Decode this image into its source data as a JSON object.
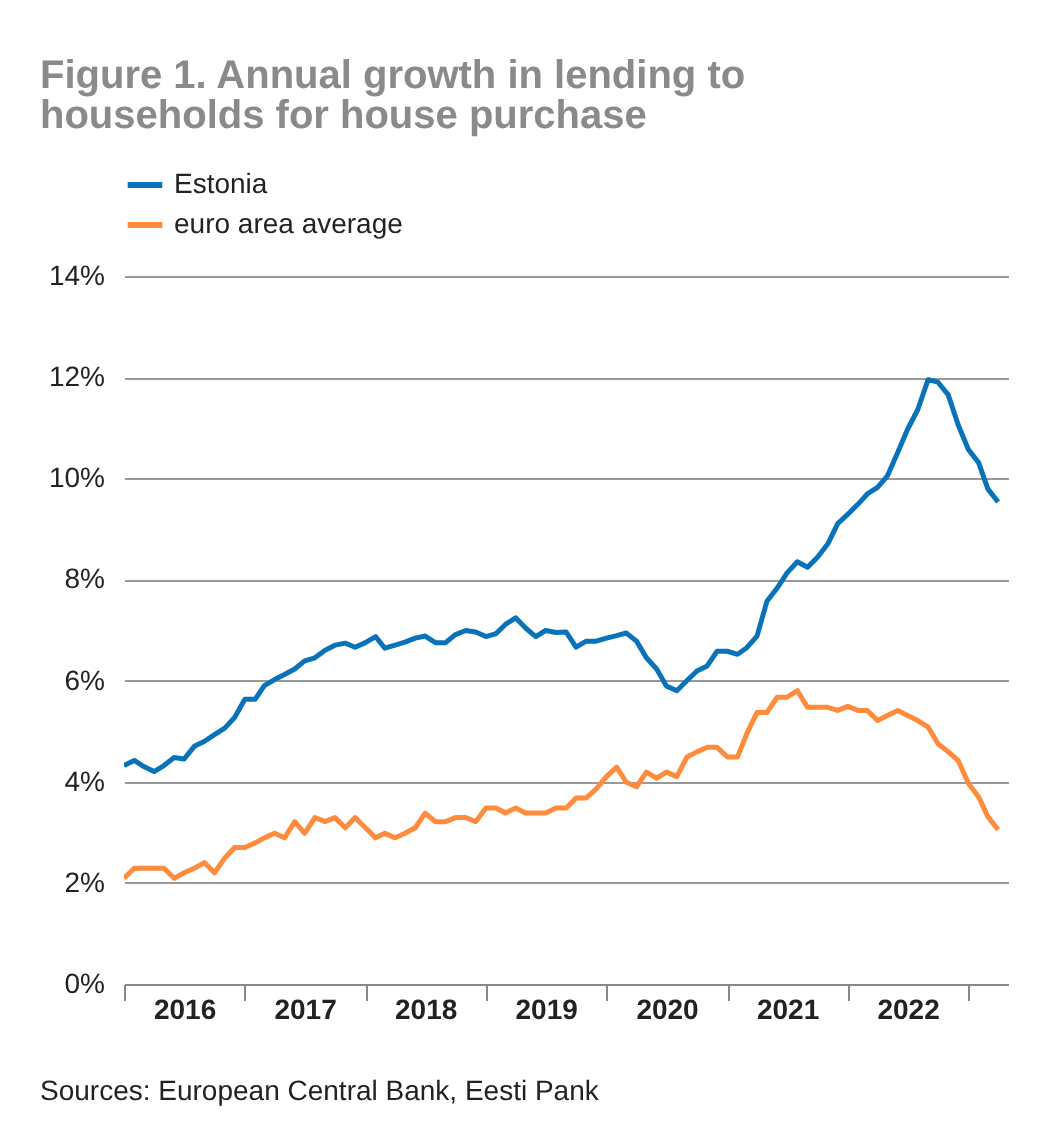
{
  "chart_data": {
    "type": "line",
    "title": "Figure 1. Annual growth in lending to households for house purchase",
    "annotations": [
      "Sources: European Central Bank, Eesti Pank"
    ],
    "x": [
      "2016-01",
      "2016-02",
      "2016-03",
      "2016-04",
      "2016-05",
      "2016-06",
      "2016-07",
      "2016-08",
      "2016-09",
      "2016-10",
      "2016-11",
      "2016-12",
      "2017-01",
      "2017-02",
      "2017-03",
      "2017-04",
      "2017-05",
      "2017-06",
      "2017-07",
      "2017-08",
      "2017-09",
      "2017-10",
      "2017-11",
      "2017-12",
      "2018-01",
      "2018-02",
      "2018-03",
      "2018-04",
      "2018-05",
      "2018-06",
      "2018-07",
      "2018-08",
      "2018-09",
      "2018-10",
      "2018-11",
      "2018-12",
      "2019-01",
      "2019-02",
      "2019-03",
      "2019-04",
      "2019-05",
      "2019-06",
      "2019-07",
      "2019-08",
      "2019-09",
      "2019-10",
      "2019-11",
      "2019-12",
      "2020-01",
      "2020-02",
      "2020-03",
      "2020-04",
      "2020-05",
      "2020-06",
      "2020-07",
      "2020-08",
      "2020-09",
      "2020-10",
      "2020-11",
      "2020-12",
      "2021-01",
      "2021-02",
      "2021-03",
      "2021-04",
      "2021-05",
      "2021-06",
      "2021-07",
      "2021-08",
      "2021-09",
      "2021-10",
      "2021-11",
      "2021-12",
      "2022-01",
      "2022-02",
      "2022-03",
      "2022-04",
      "2022-05",
      "2022-06",
      "2022-07",
      "2022-08",
      "2022-09",
      "2022-10",
      "2022-11",
      "2022-12",
      "2023-01",
      "2023-02",
      "2023-03",
      "2023-04"
    ],
    "series": [
      {
        "name": "Estonia",
        "color": "#0a72b8",
        "values": [
          4.32,
          4.42,
          4.3,
          4.2,
          4.32,
          4.48,
          4.45,
          4.7,
          4.8,
          4.93,
          5.06,
          5.27,
          5.63,
          5.63,
          5.9,
          6.02,
          6.12,
          6.23,
          6.39,
          6.45,
          6.6,
          6.7,
          6.74,
          6.66,
          6.75,
          6.87,
          6.64,
          6.7,
          6.76,
          6.84,
          6.88,
          6.75,
          6.75,
          6.91,
          6.99,
          6.96,
          6.87,
          6.93,
          7.11,
          7.24,
          7.04,
          6.87,
          6.99,
          6.95,
          6.96,
          6.66,
          6.78,
          6.78,
          6.84,
          6.89,
          6.94,
          6.78,
          6.45,
          6.23,
          5.89,
          5.8,
          6.0,
          6.19,
          6.29,
          6.58,
          6.58,
          6.52,
          6.65,
          6.88,
          7.57,
          7.83,
          8.13,
          8.35,
          8.24,
          8.44,
          8.7,
          9.1,
          9.29,
          9.49,
          9.69,
          9.82,
          10.05,
          10.51,
          10.97,
          11.36,
          11.95,
          11.9,
          11.65,
          11.06,
          10.57,
          10.31,
          9.79,
          9.53
        ]
      },
      {
        "name": "euro area average",
        "color": "#ff8c3c",
        "values": [
          2.09,
          2.29,
          2.29,
          2.29,
          2.29,
          2.09,
          2.2,
          2.29,
          2.4,
          2.2,
          2.49,
          2.7,
          2.7,
          2.79,
          2.89,
          2.98,
          2.89,
          3.21,
          2.98,
          3.29,
          3.21,
          3.29,
          3.09,
          3.29,
          3.09,
          2.89,
          2.98,
          2.89,
          2.98,
          3.09,
          3.38,
          3.21,
          3.21,
          3.29,
          3.29,
          3.21,
          3.48,
          3.48,
          3.38,
          3.48,
          3.38,
          3.38,
          3.38,
          3.48,
          3.48,
          3.68,
          3.68,
          3.86,
          4.1,
          4.29,
          3.99,
          3.9,
          4.19,
          4.07,
          4.19,
          4.1,
          4.49,
          4.59,
          4.68,
          4.68,
          4.49,
          4.49,
          4.95,
          5.37,
          5.37,
          5.67,
          5.67,
          5.8,
          5.47,
          5.47,
          5.47,
          5.41,
          5.49,
          5.41,
          5.41,
          5.21,
          5.31,
          5.41,
          5.31,
          5.21,
          5.08,
          4.75,
          4.59,
          4.42,
          3.97,
          3.7,
          3.31,
          3.05
        ]
      }
    ],
    "xlim": [
      "2016-01",
      "2023-05"
    ],
    "xticks": [
      {
        "value": "2016-01",
        "label": null
      },
      {
        "value": "2016-07",
        "label": "2016"
      },
      {
        "value": "2017-01",
        "label": null
      },
      {
        "value": "2017-07",
        "label": "2017"
      },
      {
        "value": "2018-01",
        "label": null
      },
      {
        "value": "2018-07",
        "label": "2018"
      },
      {
        "value": "2019-01",
        "label": null
      },
      {
        "value": "2019-07",
        "label": "2019"
      },
      {
        "value": "2020-01",
        "label": null
      },
      {
        "value": "2020-07",
        "label": "2020"
      },
      {
        "value": "2021-01",
        "label": null
      },
      {
        "value": "2021-07",
        "label": "2021"
      },
      {
        "value": "2022-01",
        "label": null
      },
      {
        "value": "2022-07",
        "label": "2022"
      },
      {
        "value": "2023-01",
        "label": null
      }
    ],
    "ylim": [
      0,
      14
    ],
    "yticks": [
      {
        "value": 0,
        "label": "0%"
      },
      {
        "value": 2,
        "label": "2%"
      },
      {
        "value": 4,
        "label": "4%"
      },
      {
        "value": 6,
        "label": "6%"
      },
      {
        "value": 8,
        "label": "8%"
      },
      {
        "value": 10,
        "label": "10%"
      },
      {
        "value": 12,
        "label": "12%"
      },
      {
        "value": 14,
        "label": "14%"
      }
    ],
    "grid": "y",
    "legend": "top left",
    "line_style": "solid"
  }
}
